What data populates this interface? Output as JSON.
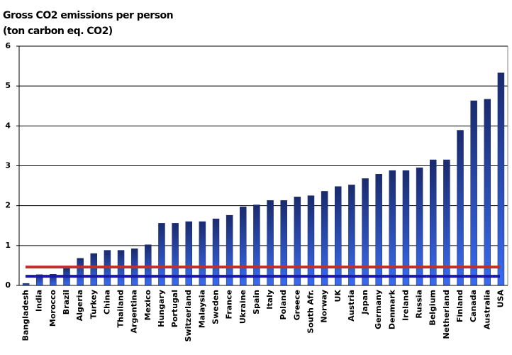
{
  "chart_data": {
    "type": "bar",
    "title": [
      "Gross CO2 emissions per person",
      "(ton carbon eq. CO2)"
    ],
    "categories": [
      "Bangladesh",
      "India",
      "Morocco",
      "Brazil",
      "Algeria",
      "Turkey",
      "China",
      "Thailand",
      "Argentina",
      "Mexico",
      "Hungary",
      "Portugal",
      "Switzerland",
      "Malaysia",
      "Sweden",
      "France",
      "Ukraine",
      "Spain",
      "Italy",
      "Poland",
      "Greece",
      "South Afr.",
      "Norway",
      "UK",
      "Austria",
      "Japan",
      "Germany",
      "Denmark",
      "Ireland",
      "Russia",
      "Belgium",
      "Netherland",
      "Finland",
      "Canada",
      "Australia",
      "USA"
    ],
    "values": [
      0.05,
      0.27,
      0.28,
      0.45,
      0.68,
      0.8,
      0.88,
      0.88,
      0.92,
      1.02,
      1.56,
      1.56,
      1.6,
      1.6,
      1.67,
      1.76,
      1.97,
      2.02,
      2.13,
      2.13,
      2.22,
      2.25,
      2.36,
      2.48,
      2.52,
      2.68,
      2.79,
      2.88,
      2.88,
      2.95,
      3.15,
      3.15,
      3.89,
      4.63,
      4.67,
      5.33
    ],
    "color": "#1a2a6c",
    "reference_lines": [
      {
        "value": 0.46,
        "color": "#c0302a"
      },
      {
        "value": 0.23,
        "color": "#1a1aa0"
      }
    ],
    "ylim": [
      0,
      6
    ],
    "yticks": [
      0,
      1,
      2,
      3,
      4,
      5,
      6
    ],
    "grid": true
  }
}
